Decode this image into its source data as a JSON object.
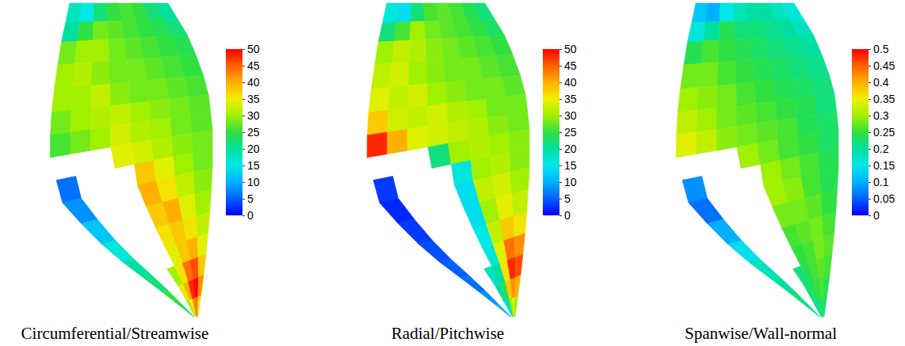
{
  "chart_data": [
    {
      "type": "heatmap",
      "title": "Circumferential/Streamwise",
      "colorbar_lim": [
        0,
        50
      ],
      "colorbar_ticks": [
        0,
        5,
        10,
        15,
        20,
        25,
        30,
        35,
        40,
        45,
        50
      ],
      "cells": [
        [
          18,
          15,
          22,
          25,
          26,
          25,
          22,
          20
        ],
        [
          20,
          25,
          28,
          27,
          26,
          25,
          24,
          22
        ],
        [
          28,
          30,
          30,
          28,
          27,
          26,
          25,
          24
        ],
        [
          30,
          31,
          29,
          28,
          28,
          27,
          26,
          25
        ],
        [
          30,
          30,
          32,
          29,
          28,
          28,
          27,
          26
        ],
        [
          28,
          30,
          31,
          32,
          30,
          29,
          28,
          27
        ],
        [
          26,
          28,
          30,
          33,
          31,
          30,
          28,
          27
        ],
        [
          null,
          null,
          null,
          34,
          33,
          31,
          29,
          28
        ],
        [
          6,
          null,
          null,
          null,
          38,
          34,
          30,
          28
        ],
        [
          8,
          null,
          null,
          null,
          40,
          36,
          32,
          29
        ],
        [
          12,
          null,
          null,
          null,
          38,
          40,
          34,
          30
        ],
        [
          16,
          null,
          null,
          null,
          36,
          38,
          36,
          32
        ],
        [
          20,
          null,
          null,
          null,
          34,
          38,
          40,
          34
        ],
        [
          22,
          null,
          null,
          30,
          36,
          44,
          46,
          38
        ],
        [
          25,
          null,
          null,
          34,
          40,
          48,
          50,
          42
        ],
        [
          24,
          null,
          null,
          30,
          35,
          42,
          44,
          36
        ]
      ]
    },
    {
      "type": "heatmap",
      "title": "Radial/Pitchwise",
      "colorbar_lim": [
        0,
        50
      ],
      "colorbar_ticks": [
        0,
        5,
        10,
        15,
        20,
        25,
        30,
        35,
        40,
        45,
        50
      ],
      "cells": [
        [
          16,
          14,
          22,
          26,
          27,
          26,
          24,
          22
        ],
        [
          22,
          26,
          30,
          28,
          27,
          26,
          25,
          23
        ],
        [
          30,
          32,
          31,
          29,
          28,
          27,
          26,
          25
        ],
        [
          32,
          33,
          30,
          29,
          28,
          28,
          27,
          26
        ],
        [
          34,
          32,
          33,
          30,
          29,
          28,
          28,
          27
        ],
        [
          38,
          33,
          32,
          33,
          31,
          30,
          28,
          28
        ],
        [
          48,
          40,
          34,
          33,
          32,
          31,
          29,
          28
        ],
        [
          null,
          null,
          null,
          22,
          30,
          31,
          30,
          29
        ],
        [
          3,
          null,
          null,
          null,
          16,
          30,
          31,
          29
        ],
        [
          2,
          null,
          null,
          null,
          14,
          32,
          33,
          30
        ],
        [
          3,
          null,
          null,
          null,
          14,
          30,
          34,
          32
        ],
        [
          4,
          null,
          null,
          null,
          15,
          32,
          38,
          36
        ],
        [
          5,
          null,
          null,
          null,
          16,
          34,
          44,
          42
        ],
        [
          6,
          null,
          null,
          18,
          20,
          36,
          48,
          46
        ],
        [
          8,
          null,
          null,
          20,
          24,
          38,
          42,
          40
        ],
        [
          10,
          null,
          null,
          16,
          20,
          30,
          34,
          30
        ]
      ]
    },
    {
      "type": "heatmap",
      "title": "Spanwise/Wall-normal",
      "colorbar_lim": [
        0,
        0.5
      ],
      "colorbar_ticks": [
        0,
        0.05,
        0.1,
        0.15,
        0.2,
        0.25,
        0.3,
        0.35,
        0.4,
        0.45,
        0.5
      ],
      "cells": [
        [
          0.12,
          0.1,
          0.15,
          0.18,
          0.2,
          0.2,
          0.18,
          0.16
        ],
        [
          0.16,
          0.2,
          0.24,
          0.22,
          0.22,
          0.21,
          0.2,
          0.18
        ],
        [
          0.24,
          0.26,
          0.25,
          0.24,
          0.23,
          0.22,
          0.21,
          0.2
        ],
        [
          0.28,
          0.28,
          0.26,
          0.25,
          0.24,
          0.23,
          0.22,
          0.21
        ],
        [
          0.3,
          0.29,
          0.28,
          0.26,
          0.25,
          0.24,
          0.23,
          0.22
        ],
        [
          0.32,
          0.3,
          0.28,
          0.27,
          0.26,
          0.25,
          0.24,
          0.22
        ],
        [
          0.34,
          0.32,
          0.29,
          0.28,
          0.27,
          0.26,
          0.24,
          0.23
        ],
        [
          null,
          null,
          null,
          0.3,
          0.28,
          0.26,
          0.25,
          0.23
        ],
        [
          0.08,
          null,
          null,
          null,
          0.3,
          0.28,
          0.26,
          0.24
        ],
        [
          0.06,
          null,
          null,
          null,
          0.3,
          0.29,
          0.26,
          0.24
        ],
        [
          0.1,
          null,
          null,
          null,
          0.28,
          0.28,
          0.27,
          0.25
        ],
        [
          0.14,
          null,
          null,
          null,
          0.26,
          0.27,
          0.28,
          0.26
        ],
        [
          0.18,
          null,
          null,
          null,
          0.25,
          0.26,
          0.28,
          0.27
        ],
        [
          0.2,
          null,
          null,
          0.22,
          0.24,
          0.26,
          0.27,
          0.26
        ],
        [
          0.22,
          null,
          null,
          0.22,
          0.24,
          0.25,
          0.26,
          0.24
        ],
        [
          0.2,
          null,
          null,
          0.2,
          0.22,
          0.23,
          0.24,
          0.22
        ]
      ]
    }
  ]
}
